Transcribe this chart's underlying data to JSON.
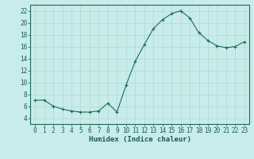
{
  "x": [
    0,
    1,
    2,
    3,
    4,
    5,
    6,
    7,
    8,
    9,
    10,
    11,
    12,
    13,
    14,
    15,
    16,
    17,
    18,
    19,
    20,
    21,
    22,
    23
  ],
  "y": [
    7.0,
    7.0,
    6.0,
    5.5,
    5.2,
    5.0,
    5.0,
    5.2,
    6.5,
    5.0,
    9.5,
    13.5,
    16.3,
    19.0,
    20.5,
    21.5,
    22.0,
    20.8,
    18.3,
    17.0,
    16.1,
    15.8,
    16.0,
    16.8
  ],
  "line_color": "#1a6b5a",
  "marker_color": "#1a6b5a",
  "bg_color": "#c8ecea",
  "grid_color": "#b0d8d4",
  "xlabel": "Humidex (Indice chaleur)",
  "xlim": [
    -0.5,
    23.5
  ],
  "ylim": [
    3,
    23
  ],
  "yticks": [
    4,
    6,
    8,
    10,
    12,
    14,
    16,
    18,
    20,
    22
  ],
  "xticks": [
    0,
    1,
    2,
    3,
    4,
    5,
    6,
    7,
    8,
    9,
    10,
    11,
    12,
    13,
    14,
    15,
    16,
    17,
    18,
    19,
    20,
    21,
    22,
    23
  ],
  "tick_fontsize": 5.5,
  "xlabel_fontsize": 6.5,
  "marker_size": 3,
  "line_width": 0.8
}
